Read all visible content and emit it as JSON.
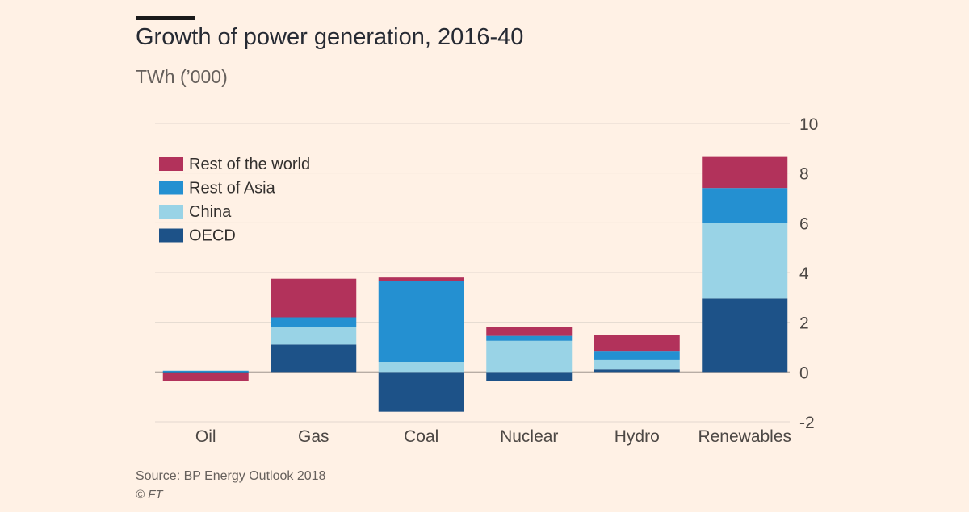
{
  "header": {
    "title": "Growth of power generation, 2016-40",
    "subtitle": "TWh (’000)"
  },
  "footer": {
    "source": "Source: BP Energy Outlook 2018",
    "credit": "© FT"
  },
  "chart_data": {
    "type": "bar",
    "stacked": true,
    "title": "Growth of power generation, 2016-40",
    "subtitle": "TWh (’000)",
    "xlabel": "",
    "ylabel": "",
    "ylim": [
      -2,
      10
    ],
    "yticks": [
      -2,
      0,
      2,
      4,
      6,
      8,
      10
    ],
    "ytick_labels": [
      "-2",
      "0",
      "2",
      "4",
      "6",
      "8",
      "10"
    ],
    "y_axis_side": "right",
    "grid": true,
    "legend_position": "top-left",
    "categories": [
      "Oil",
      "Gas",
      "Coal",
      "Nuclear",
      "Hydro",
      "Renewables"
    ],
    "series": [
      {
        "name": "OECD",
        "color": "#1d5288",
        "values": [
          -0.05,
          1.1,
          -1.6,
          -0.35,
          0.1,
          2.95
        ]
      },
      {
        "name": "China",
        "color": "#99d3e6",
        "values": [
          0.0,
          0.7,
          0.4,
          1.25,
          0.4,
          3.05
        ]
      },
      {
        "name": "Rest of Asia",
        "color": "#2490d1",
        "values": [
          0.05,
          0.4,
          3.25,
          0.2,
          0.35,
          1.4
        ]
      },
      {
        "name": "Rest of the world",
        "color": "#b2325b",
        "values": [
          -0.3,
          1.55,
          0.15,
          0.35,
          0.65,
          1.25
        ]
      }
    ],
    "legend_order": [
      "Rest of the world",
      "Rest of Asia",
      "China",
      "OECD"
    ]
  }
}
